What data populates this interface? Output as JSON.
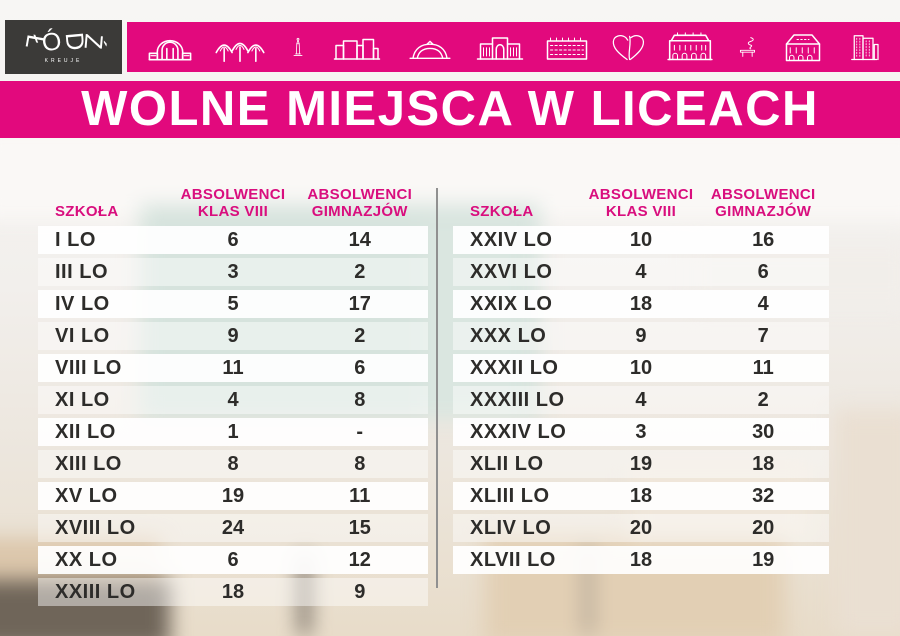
{
  "logo": {
    "text": "ŁÓDŹ",
    "subtext": "KREUJE"
  },
  "icon_bar_icons": [
    "train-station",
    "canopy-trees",
    "monument",
    "modern-buildings",
    "arena-dome",
    "gate-building",
    "factory",
    "heart",
    "palace",
    "spiral-sculpture",
    "mansion",
    "office-tower"
  ],
  "title": "WOLNE MIEJSCA W LICEACH",
  "table_headers": {
    "school": "SZKOŁA",
    "col1": [
      "ABSOLWENCI",
      "KLAS VIII"
    ],
    "col2": [
      "ABSOLWENCI",
      "GIMNAZJÓW"
    ]
  },
  "chart_data": {
    "type": "table",
    "title": "WOLNE MIEJSCA W LICEACH",
    "columns": [
      "SZKOŁA",
      "ABSOLWENCI KLAS VIII",
      "ABSOLWENCI GIMNAZJÓW"
    ],
    "tables": [
      {
        "side": "left",
        "rows": [
          [
            "I LO",
            "6",
            "14"
          ],
          [
            "III LO",
            "3",
            "2"
          ],
          [
            "IV LO",
            "5",
            "17"
          ],
          [
            "VI LO",
            "9",
            "2"
          ],
          [
            "VIII LO",
            "11",
            "6"
          ],
          [
            "XI LO",
            "4",
            "8"
          ],
          [
            "XII LO",
            "1",
            "-"
          ],
          [
            "XIII LO",
            "8",
            "8"
          ],
          [
            "XV LO",
            "19",
            "11"
          ],
          [
            "XVIII LO",
            "24",
            "15"
          ],
          [
            "XX LO",
            "6",
            "12"
          ],
          [
            "XXIII LO",
            "18",
            "9"
          ]
        ]
      },
      {
        "side": "right",
        "rows": [
          [
            "XXIV LO",
            "10",
            "16"
          ],
          [
            "XXVI LO",
            "4",
            "6"
          ],
          [
            "XXIX LO",
            "18",
            "4"
          ],
          [
            "XXX LO",
            "9",
            "7"
          ],
          [
            "XXXII LO",
            "10",
            "11"
          ],
          [
            "XXXIII LO",
            "4",
            "2"
          ],
          [
            "XXXIV LO",
            "3",
            "30"
          ],
          [
            "XLII LO",
            "19",
            "18"
          ],
          [
            "XLIII LO",
            "18",
            "32"
          ],
          [
            "XLIV LO",
            "20",
            "20"
          ],
          [
            "XLVII LO",
            "18",
            "19"
          ]
        ]
      }
    ]
  },
  "colors": {
    "pink": "#E2097D",
    "header_text_pink": "#D90E7E",
    "logo_background": "#3B3A38",
    "table_text": "#2D2C2A",
    "divider_gray": "#909090",
    "row_bright": "rgba(255,255,255,0.92)",
    "row_faint": "rgba(255,255,255,0.45)"
  }
}
